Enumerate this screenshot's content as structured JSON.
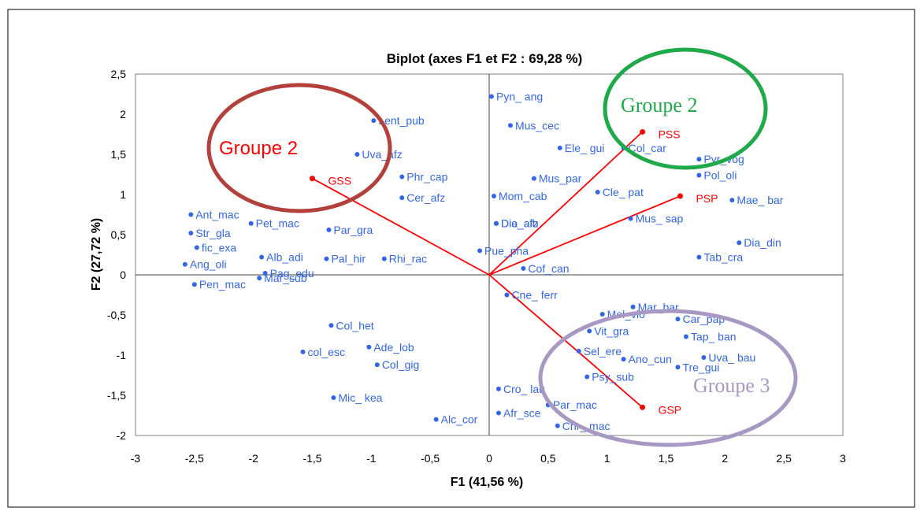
{
  "chart_data": {
    "type": "scatter",
    "title": "Biplot (axes F1 et F2 : 69,28 %)",
    "xlabel": "F1 (41,56 %)",
    "ylabel": "F2 (27,72 %)",
    "xlim": [
      -3,
      3
    ],
    "ylim": [
      -2,
      2.5
    ],
    "x_ticks": [
      "-3",
      "-2,5",
      "-2",
      "-1,5",
      "-1",
      "-0,5",
      "0",
      "0,5",
      "1",
      "1,5",
      "2",
      "2,5",
      "3"
    ],
    "y_ticks": [
      "2,5",
      "2",
      "1,5",
      "1",
      "0,5",
      "0",
      "-0,5",
      "-1",
      "-1,5",
      "-2"
    ],
    "grid": false,
    "colors": {
      "variables": "#ff0000",
      "observations": "#3366e6",
      "group1": "#b3403a",
      "group2": "#1faa4a",
      "group3": "#a898c4"
    },
    "variables": [
      {
        "label": "PSS",
        "x": 1.3,
        "y": 1.78
      },
      {
        "label": "PSP",
        "x": 1.62,
        "y": 0.98
      },
      {
        "label": "GSS",
        "x": -1.5,
        "y": 1.2
      },
      {
        "label": "GSP",
        "x": 1.3,
        "y": -1.65
      }
    ],
    "observations": [
      {
        "label": "Pyn_ ang",
        "x": 0.02,
        "y": 2.22
      },
      {
        "label": "Mus_cec",
        "x": 0.18,
        "y": 1.86
      },
      {
        "label": "Lent_pub",
        "x": -0.98,
        "y": 1.92
      },
      {
        "label": "Uva_afz",
        "x": -1.12,
        "y": 1.5
      },
      {
        "label": "Phr_cap",
        "x": -0.74,
        "y": 1.22
      },
      {
        "label": "Cer_afz",
        "x": -0.74,
        "y": 0.96
      },
      {
        "label": "Mom_cab",
        "x": 0.04,
        "y": 0.98
      },
      {
        "label": "Dio_alb",
        "x": 0.06,
        "y": 0.64
      },
      {
        "label": "Dia_afz",
        "x": 0.06,
        "y": 0.64
      },
      {
        "label": "Par_gra",
        "x": -1.36,
        "y": 0.56
      },
      {
        "label": "Pet_mac",
        "x": -2.02,
        "y": 0.64
      },
      {
        "label": "Ant_mac",
        "x": -2.53,
        "y": 0.75
      },
      {
        "label": "Str_gla",
        "x": -2.53,
        "y": 0.52
      },
      {
        "label": "fic_exa",
        "x": -2.48,
        "y": 0.34
      },
      {
        "label": "Alb_adi",
        "x": -1.93,
        "y": 0.22
      },
      {
        "label": "Pal_hir",
        "x": -1.38,
        "y": 0.2
      },
      {
        "label": "Rhi_rac",
        "x": -0.89,
        "y": 0.2
      },
      {
        "label": "Ang_oli",
        "x": -2.58,
        "y": 0.13
      },
      {
        "label": "Pag_edu",
        "x": -1.9,
        "y": 0.02
      },
      {
        "label": "Mar_sub",
        "x": -1.95,
        "y": -0.04
      },
      {
        "label": "Pen_mac",
        "x": -2.5,
        "y": -0.12
      },
      {
        "label": "Pue_pha",
        "x": -0.08,
        "y": 0.3
      },
      {
        "label": "Cof_can",
        "x": 0.29,
        "y": 0.08
      },
      {
        "label": "Cne_ ferr",
        "x": 0.15,
        "y": -0.25
      },
      {
        "label": "Ele_ gui",
        "x": 0.6,
        "y": 1.58
      },
      {
        "label": "Col_car",
        "x": 1.14,
        "y": 1.58
      },
      {
        "label": "Pyr_vog",
        "x": 1.78,
        "y": 1.44
      },
      {
        "label": "Pol_oli",
        "x": 1.78,
        "y": 1.24
      },
      {
        "label": "Mus_par",
        "x": 0.38,
        "y": 1.2
      },
      {
        "label": "Cle_ pat",
        "x": 0.92,
        "y": 1.03
      },
      {
        "label": "Mae_ bar",
        "x": 2.06,
        "y": 0.93
      },
      {
        "label": "Mus_ sap",
        "x": 1.2,
        "y": 0.7
      },
      {
        "label": "Dia_din",
        "x": 2.12,
        "y": 0.4
      },
      {
        "label": "Tab_cra",
        "x": 1.78,
        "y": 0.22
      },
      {
        "label": "Mar_bar",
        "x": 1.22,
        "y": -0.4
      },
      {
        "label": "Mel_vio",
        "x": 0.96,
        "y": -0.49
      },
      {
        "label": "Car_pap",
        "x": 1.6,
        "y": -0.55
      },
      {
        "label": "Vit_gra",
        "x": 0.85,
        "y": -0.7
      },
      {
        "label": "Tap_ ban",
        "x": 1.67,
        "y": -0.77
      },
      {
        "label": "Sel_ere",
        "x": 0.76,
        "y": -0.95
      },
      {
        "label": "Uva_ bau",
        "x": 1.82,
        "y": -1.03
      },
      {
        "label": "Ano_cun",
        "x": 1.14,
        "y": -1.05
      },
      {
        "label": "Tre_gui",
        "x": 1.6,
        "y": -1.15
      },
      {
        "label": "Psy_sub",
        "x": 0.83,
        "y": -1.27
      },
      {
        "label": "Col_het",
        "x": -1.34,
        "y": -0.63
      },
      {
        "label": "col_esc",
        "x": -1.58,
        "y": -0.96
      },
      {
        "label": "Ade_lob",
        "x": -1.02,
        "y": -0.9
      },
      {
        "label": "Col_gig",
        "x": -0.95,
        "y": -1.12
      },
      {
        "label": "Mic_ kea",
        "x": -1.32,
        "y": -1.53
      },
      {
        "label": "Cro_ lau",
        "x": 0.08,
        "y": -1.42
      },
      {
        "label": "Par_mac",
        "x": 0.5,
        "y": -1.62
      },
      {
        "label": "Afr_sce",
        "x": 0.08,
        "y": -1.72
      },
      {
        "label": "Alc_cor",
        "x": -0.45,
        "y": -1.8
      },
      {
        "label": "Chr_ mac",
        "x": 0.58,
        "y": -1.88
      }
    ],
    "annotations": [
      {
        "text": "Groupe 2",
        "color": "#ff0000"
      },
      {
        "text": "Groupe 2",
        "color": "#1faa4a"
      },
      {
        "text": "Groupe 3",
        "color": "#a898c4"
      }
    ]
  }
}
